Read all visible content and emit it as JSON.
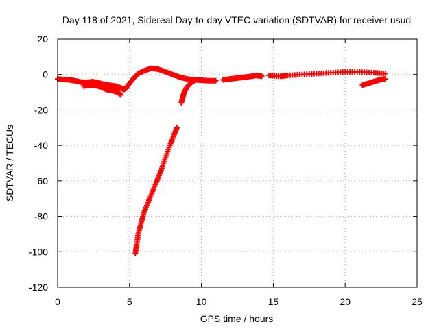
{
  "chart_data": {
    "type": "scatter",
    "title": "Day 118 of 2021, Sidereal Day-to-day VTEC variation (SDTVAR) for receiver usud",
    "xlabel": "GPS time / hours",
    "ylabel": "SDTVAR / TECUs",
    "xlim": [
      0,
      25
    ],
    "ylim": [
      -120,
      20
    ],
    "xticks": [
      "0",
      "5",
      "10",
      "15",
      "20",
      "25"
    ],
    "yticks": [
      "20",
      "0",
      "-20",
      "-40",
      "-60",
      "-80",
      "-100",
      "-120"
    ],
    "grid": true,
    "marker": "+",
    "color": "#ff0000",
    "series": [
      {
        "name": "baseline-early",
        "points": [
          [
            0.0,
            -2.5
          ],
          [
            0.4,
            -2.8
          ],
          [
            0.8,
            -3.0
          ],
          [
            1.2,
            -3.5
          ],
          [
            1.6,
            -4.2
          ],
          [
            2.0,
            -4.5
          ],
          [
            2.4,
            -4.0
          ],
          [
            2.8,
            -4.5
          ],
          [
            3.2,
            -5.5
          ],
          [
            3.6,
            -6.0
          ],
          [
            4.0,
            -6.5
          ],
          [
            4.4,
            -7.5
          ],
          [
            4.6,
            -8.5
          ],
          [
            4.8,
            -7.5
          ]
        ]
      },
      {
        "name": "baseline-lower-band",
        "points": [
          [
            1.8,
            -6.5
          ],
          [
            2.2,
            -6.0
          ],
          [
            2.6,
            -6.0
          ],
          [
            3.0,
            -7.0
          ],
          [
            3.4,
            -8.5
          ],
          [
            3.8,
            -9.0
          ],
          [
            4.2,
            -10.0
          ],
          [
            4.4,
            -11.5
          ]
        ]
      },
      {
        "name": "rise-and-bump",
        "points": [
          [
            4.7,
            -8.0
          ],
          [
            5.0,
            -5.0
          ],
          [
            5.3,
            -2.0
          ],
          [
            5.6,
            0.5
          ],
          [
            6.0,
            2.0
          ],
          [
            6.5,
            3.5
          ],
          [
            7.0,
            3.0
          ],
          [
            7.5,
            1.5
          ],
          [
            8.0,
            0.0
          ],
          [
            8.5,
            -1.5
          ],
          [
            9.0,
            -2.5
          ],
          [
            9.5,
            -3.0
          ],
          [
            10.0,
            -3.2
          ],
          [
            10.5,
            -3.5
          ],
          [
            11.0,
            -3.5
          ]
        ]
      },
      {
        "name": "deep-drop-curve",
        "points": [
          [
            5.4,
            -101.0
          ],
          [
            5.5,
            -96.0
          ],
          [
            5.6,
            -90.0
          ],
          [
            5.8,
            -84.0
          ],
          [
            6.0,
            -78.0
          ],
          [
            6.3,
            -72.0
          ],
          [
            6.6,
            -66.0
          ],
          [
            6.9,
            -60.0
          ],
          [
            7.2,
            -54.0
          ],
          [
            7.5,
            -47.0
          ],
          [
            7.8,
            -40.0
          ],
          [
            8.1,
            -34.0
          ],
          [
            8.3,
            -30.0
          ]
        ]
      },
      {
        "name": "recovery-hook",
        "points": [
          [
            8.6,
            -16.0
          ],
          [
            8.7,
            -13.0
          ],
          [
            8.8,
            -10.0
          ],
          [
            9.0,
            -7.0
          ],
          [
            9.3,
            -4.5
          ],
          [
            9.6,
            -3.0
          ]
        ]
      },
      {
        "name": "sparse-mid",
        "points": [
          [
            11.5,
            -3.0
          ],
          [
            12.0,
            -2.5
          ],
          [
            12.5,
            -2.0
          ],
          [
            13.0,
            -1.5
          ],
          [
            13.5,
            -1.0
          ],
          [
            13.8,
            -0.5
          ],
          [
            14.2,
            -1.0
          ]
        ]
      },
      {
        "name": "late-plateau",
        "points": [
          [
            14.7,
            -0.5
          ],
          [
            15.5,
            -1.0
          ],
          [
            16.0,
            -0.5
          ],
          [
            17.0,
            0.0
          ],
          [
            18.0,
            0.5
          ],
          [
            19.0,
            1.0
          ],
          [
            20.0,
            1.5
          ],
          [
            21.0,
            1.5
          ],
          [
            22.0,
            1.0
          ],
          [
            22.8,
            0.5
          ]
        ]
      },
      {
        "name": "late-dip",
        "points": [
          [
            21.2,
            -6.0
          ],
          [
            21.6,
            -5.0
          ],
          [
            22.0,
            -4.0
          ],
          [
            22.4,
            -3.0
          ],
          [
            22.8,
            -2.5
          ]
        ]
      }
    ]
  }
}
